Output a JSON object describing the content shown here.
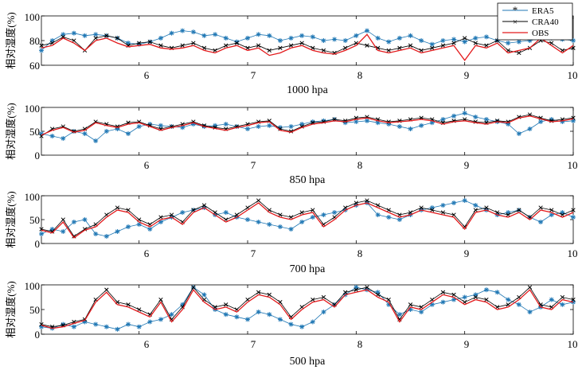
{
  "figure": {
    "ylabel_text": "相对湿度(%)"
  },
  "chart_data": [
    {
      "type": "line",
      "title": "1000 hpa",
      "xlabel": "1000 hpa",
      "ylabel": "相对湿度(%)",
      "xlim": [
        5.1,
        10.0
      ],
      "ylim": [
        60,
        100
      ],
      "xticks": [
        6,
        7,
        8,
        9,
        10
      ],
      "yticks": [
        60,
        80,
        100
      ],
      "xtick_labels": [
        "6",
        "7",
        "8",
        "9",
        "10"
      ],
      "ytick_labels": [
        "60",
        "80",
        "100"
      ],
      "legend": {
        "position": "top-right",
        "entries": [
          "ERA5",
          "CRA40",
          "OBS"
        ]
      },
      "x": [
        5.1,
        5.2,
        5.3,
        5.4,
        5.5,
        5.6,
        5.7,
        5.8,
        5.9,
        6.0,
        6.1,
        6.2,
        6.3,
        6.4,
        6.5,
        6.6,
        6.7,
        6.8,
        6.9,
        7.0,
        7.1,
        7.2,
        7.3,
        7.4,
        7.5,
        7.6,
        7.7,
        7.8,
        7.9,
        8.0,
        8.1,
        8.2,
        8.3,
        8.4,
        8.5,
        8.6,
        8.7,
        8.8,
        8.9,
        9.0,
        9.1,
        9.2,
        9.3,
        9.4,
        9.5,
        9.6,
        9.7,
        9.8,
        9.9,
        10.0
      ],
      "series": [
        {
          "name": "ERA5",
          "color": "#1f77b4",
          "marker": "asterisk",
          "values": [
            72,
            80,
            85,
            86,
            84,
            85,
            84,
            82,
            78,
            77,
            79,
            82,
            86,
            88,
            87,
            84,
            85,
            82,
            79,
            82,
            85,
            84,
            80,
            82,
            84,
            83,
            80,
            81,
            80,
            84,
            88,
            82,
            79,
            82,
            84,
            80,
            77,
            80,
            81,
            79,
            82,
            83,
            80,
            78,
            79,
            80,
            82,
            82,
            81,
            80
          ]
        },
        {
          "name": "CRA40",
          "color": "#000000",
          "marker": "x",
          "values": [
            76,
            78,
            83,
            80,
            72,
            82,
            84,
            82,
            76,
            78,
            79,
            76,
            74,
            76,
            78,
            74,
            72,
            76,
            78,
            74,
            76,
            72,
            74,
            76,
            78,
            74,
            72,
            70,
            74,
            78,
            76,
            74,
            72,
            74,
            76,
            72,
            74,
            76,
            78,
            82,
            78,
            76,
            80,
            72,
            70,
            74,
            80,
            78,
            72,
            74
          ]
        },
        {
          "name": "OBS",
          "color": "#e31a1c",
          "marker": "none",
          "values": [
            74,
            76,
            82,
            78,
            72,
            80,
            82,
            78,
            75,
            76,
            77,
            74,
            73,
            74,
            76,
            72,
            70,
            74,
            76,
            72,
            74,
            68,
            70,
            74,
            76,
            72,
            70,
            69,
            72,
            76,
            85,
            72,
            70,
            72,
            74,
            70,
            72,
            74,
            76,
            64,
            76,
            74,
            78,
            70,
            72,
            74,
            82,
            76,
            70,
            76
          ]
        }
      ]
    },
    {
      "type": "line",
      "title": "850 hpa",
      "xlabel": "850 hpa",
      "ylabel": "相对湿度(%)",
      "xlim": [
        5.1,
        10.0
      ],
      "ylim": [
        0,
        100
      ],
      "xticks": [
        6,
        7,
        8,
        9,
        10
      ],
      "yticks": [
        0,
        50,
        100
      ],
      "xtick_labels": [
        "6",
        "7",
        "8",
        "9",
        "10"
      ],
      "ytick_labels": [
        "0",
        "50",
        "100"
      ],
      "x": [
        5.1,
        5.2,
        5.3,
        5.4,
        5.5,
        5.6,
        5.7,
        5.8,
        5.9,
        6.0,
        6.1,
        6.2,
        6.3,
        6.4,
        6.5,
        6.6,
        6.7,
        6.8,
        6.9,
        7.0,
        7.1,
        7.2,
        7.3,
        7.4,
        7.5,
        7.6,
        7.7,
        7.8,
        7.9,
        8.0,
        8.1,
        8.2,
        8.3,
        8.4,
        8.5,
        8.6,
        8.7,
        8.8,
        8.9,
        9.0,
        9.1,
        9.2,
        9.3,
        9.4,
        9.5,
        9.6,
        9.7,
        9.8,
        9.9,
        10.0
      ],
      "series": [
        {
          "name": "ERA5",
          "color": "#1f77b4",
          "marker": "asterisk",
          "values": [
            45,
            40,
            35,
            50,
            45,
            30,
            50,
            55,
            45,
            60,
            65,
            62,
            60,
            58,
            65,
            60,
            62,
            65,
            60,
            55,
            60,
            62,
            58,
            60,
            65,
            70,
            72,
            75,
            68,
            70,
            72,
            68,
            65,
            60,
            55,
            62,
            68,
            75,
            82,
            88,
            80,
            75,
            70,
            65,
            45,
            55,
            70,
            75,
            70,
            72
          ]
        },
        {
          "name": "CRA40",
          "color": "#000000",
          "marker": "x",
          "values": [
            40,
            55,
            60,
            50,
            55,
            70,
            65,
            60,
            68,
            70,
            62,
            55,
            60,
            65,
            70,
            62,
            58,
            55,
            60,
            65,
            70,
            72,
            55,
            50,
            60,
            68,
            70,
            75,
            72,
            78,
            80,
            75,
            70,
            72,
            75,
            78,
            75,
            68,
            72,
            75,
            70,
            68,
            72,
            70,
            80,
            85,
            78,
            72,
            75,
            78
          ]
        },
        {
          "name": "OBS",
          "color": "#e31a1c",
          "marker": "none",
          "values": [
            42,
            52,
            58,
            48,
            52,
            68,
            62,
            58,
            65,
            68,
            60,
            52,
            58,
            62,
            68,
            60,
            56,
            52,
            58,
            62,
            68,
            70,
            52,
            48,
            58,
            65,
            68,
            72,
            70,
            75,
            78,
            72,
            68,
            70,
            72,
            75,
            72,
            65,
            70,
            72,
            68,
            65,
            70,
            68,
            78,
            82,
            76,
            70,
            72,
            76
          ]
        }
      ]
    },
    {
      "type": "line",
      "title": "700 hpa",
      "xlabel": "700 hpa",
      "ylabel": "相对湿度(%)",
      "xlim": [
        5.1,
        10.0
      ],
      "ylim": [
        0,
        100
      ],
      "xticks": [
        6,
        7,
        8,
        9,
        10
      ],
      "yticks": [
        0,
        50,
        100
      ],
      "xtick_labels": [
        "6",
        "7",
        "8",
        "9",
        "10"
      ],
      "ytick_labels": [
        "0",
        "50",
        "100"
      ],
      "x": [
        5.1,
        5.2,
        5.3,
        5.4,
        5.5,
        5.6,
        5.7,
        5.8,
        5.9,
        6.0,
        6.1,
        6.2,
        6.3,
        6.4,
        6.5,
        6.6,
        6.7,
        6.8,
        6.9,
        7.0,
        7.1,
        7.2,
        7.3,
        7.4,
        7.5,
        7.6,
        7.7,
        7.8,
        7.9,
        8.0,
        8.1,
        8.2,
        8.3,
        8.4,
        8.5,
        8.6,
        8.7,
        8.8,
        8.9,
        9.0,
        9.1,
        9.2,
        9.3,
        9.4,
        9.5,
        9.6,
        9.7,
        9.8,
        9.9,
        10.0
      ],
      "series": [
        {
          "name": "ERA5",
          "color": "#1f77b4",
          "marker": "asterisk",
          "values": [
            20,
            30,
            25,
            45,
            50,
            20,
            15,
            25,
            35,
            40,
            30,
            45,
            55,
            65,
            70,
            75,
            60,
            65,
            55,
            50,
            45,
            40,
            35,
            30,
            45,
            55,
            60,
            65,
            70,
            80,
            85,
            60,
            55,
            50,
            60,
            70,
            75,
            80,
            85,
            90,
            80,
            70,
            60,
            65,
            70,
            55,
            45,
            60,
            65,
            55
          ]
        },
        {
          "name": "CRA40",
          "color": "#000000",
          "marker": "x",
          "values": [
            30,
            25,
            50,
            15,
            30,
            40,
            60,
            75,
            70,
            50,
            40,
            55,
            60,
            45,
            70,
            80,
            65,
            50,
            60,
            75,
            90,
            70,
            60,
            55,
            65,
            70,
            40,
            55,
            75,
            85,
            90,
            80,
            70,
            60,
            65,
            75,
            70,
            65,
            60,
            35,
            70,
            75,
            65,
            60,
            70,
            55,
            75,
            70,
            60,
            70
          ]
        },
        {
          "name": "OBS",
          "color": "#e31a1c",
          "marker": "none",
          "values": [
            28,
            22,
            45,
            12,
            28,
            35,
            55,
            70,
            65,
            45,
            35,
            50,
            55,
            40,
            65,
            75,
            60,
            45,
            55,
            70,
            85,
            65,
            55,
            50,
            60,
            65,
            35,
            50,
            70,
            80,
            85,
            75,
            65,
            55,
            60,
            70,
            65,
            60,
            55,
            30,
            65,
            70,
            60,
            55,
            65,
            50,
            70,
            65,
            55,
            65
          ]
        }
      ]
    },
    {
      "type": "line",
      "title": "500 hpa",
      "xlabel": "500 hpa",
      "ylabel": "相对湿度(%)",
      "xlim": [
        5.1,
        10.0
      ],
      "ylim": [
        0,
        100
      ],
      "xticks": [
        6,
        7,
        8,
        9,
        10
      ],
      "yticks": [
        0,
        50,
        100
      ],
      "xtick_labels": [
        "6",
        "7",
        "8",
        "9",
        "10"
      ],
      "ytick_labels": [
        "0",
        "50",
        "100"
      ],
      "x": [
        5.1,
        5.2,
        5.3,
        5.4,
        5.5,
        5.6,
        5.7,
        5.8,
        5.9,
        6.0,
        6.1,
        6.2,
        6.3,
        6.4,
        6.5,
        6.6,
        6.7,
        6.8,
        6.9,
        7.0,
        7.1,
        7.2,
        7.3,
        7.4,
        7.5,
        7.6,
        7.7,
        7.8,
        7.9,
        8.0,
        8.1,
        8.2,
        8.3,
        8.4,
        8.5,
        8.6,
        8.7,
        8.8,
        8.9,
        9.0,
        9.1,
        9.2,
        9.3,
        9.4,
        9.5,
        9.6,
        9.7,
        9.8,
        9.9,
        10.0
      ],
      "series": [
        {
          "name": "ERA5",
          "color": "#1f77b4",
          "marker": "asterisk",
          "values": [
            15,
            12,
            20,
            15,
            25,
            20,
            15,
            10,
            20,
            15,
            25,
            30,
            40,
            60,
            95,
            80,
            50,
            40,
            35,
            30,
            45,
            40,
            30,
            20,
            15,
            25,
            45,
            60,
            80,
            95,
            90,
            85,
            60,
            40,
            50,
            45,
            60,
            65,
            70,
            75,
            80,
            90,
            85,
            70,
            60,
            45,
            55,
            70,
            60,
            65
          ]
        },
        {
          "name": "CRA40",
          "color": "#000000",
          "marker": "x",
          "values": [
            20,
            15,
            18,
            25,
            30,
            70,
            90,
            65,
            60,
            50,
            40,
            70,
            30,
            55,
            95,
            70,
            55,
            60,
            50,
            70,
            85,
            80,
            65,
            35,
            55,
            70,
            75,
            60,
            85,
            90,
            95,
            80,
            70,
            30,
            60,
            55,
            70,
            85,
            80,
            65,
            75,
            70,
            55,
            60,
            75,
            95,
            60,
            55,
            75,
            70
          ]
        },
        {
          "name": "OBS",
          "color": "#e31a1c",
          "marker": "none",
          "values": [
            18,
            12,
            15,
            22,
            28,
            65,
            85,
            60,
            55,
            45,
            35,
            65,
            25,
            50,
            90,
            65,
            50,
            55,
            45,
            65,
            80,
            75,
            60,
            30,
            50,
            65,
            70,
            55,
            80,
            85,
            90,
            75,
            65,
            25,
            55,
            50,
            65,
            80,
            75,
            60,
            70,
            65,
            50,
            55,
            70,
            90,
            55,
            50,
            70,
            65
          ]
        }
      ]
    }
  ]
}
